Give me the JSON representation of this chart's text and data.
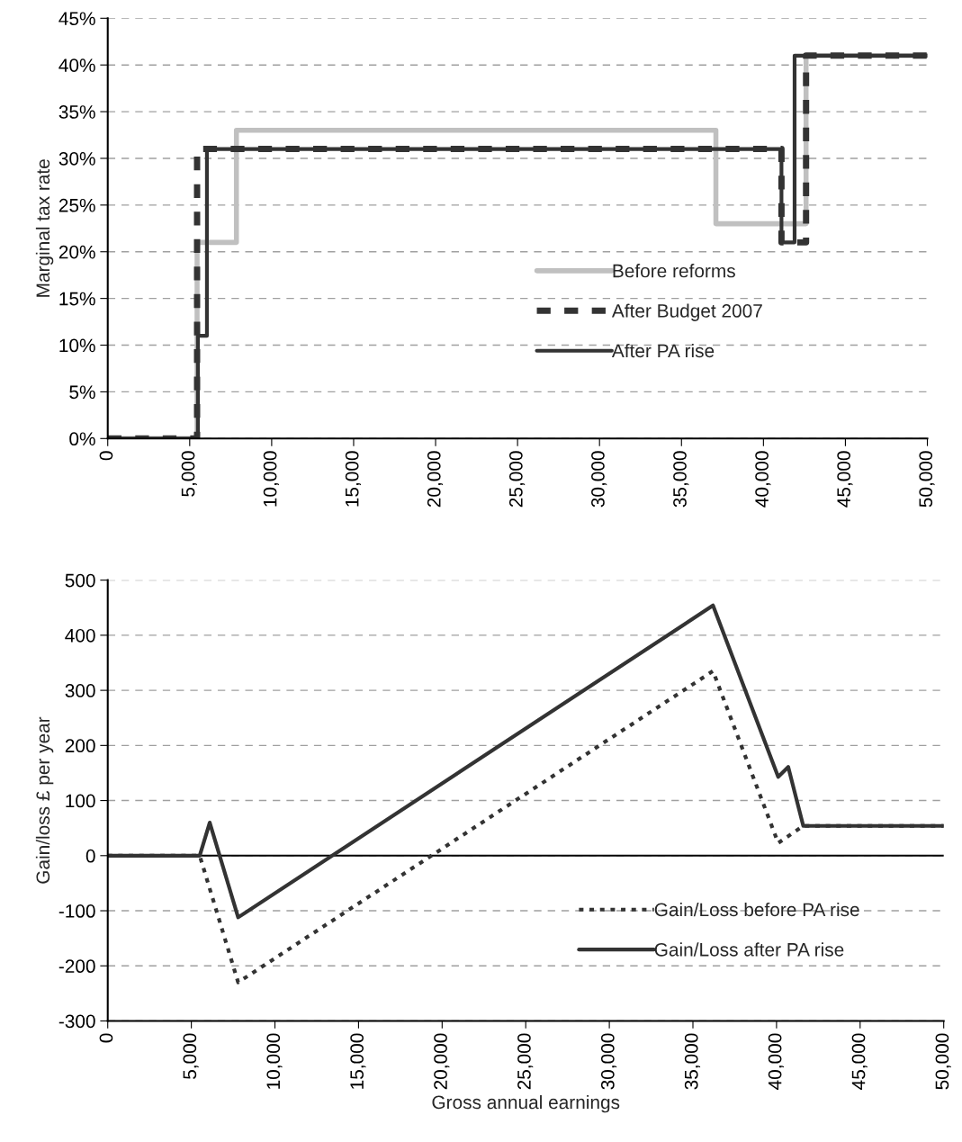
{
  "chart_data": [
    {
      "type": "step",
      "ylabel": "Marginal tax rate",
      "xlim": [
        0,
        50000
      ],
      "xticks": [
        {
          "value": 0,
          "label": "0"
        },
        {
          "value": 5000,
          "label": "5,000"
        },
        {
          "value": 10000,
          "label": "10,000"
        },
        {
          "value": 15000,
          "label": "15,000"
        },
        {
          "value": 20000,
          "label": "20,000"
        },
        {
          "value": 25000,
          "label": "25,000"
        },
        {
          "value": 30000,
          "label": "30,000"
        },
        {
          "value": 35000,
          "label": "35,000"
        },
        {
          "value": 40000,
          "label": "40,000"
        },
        {
          "value": 45000,
          "label": "45,000"
        },
        {
          "value": 50000,
          "label": "50,000"
        }
      ],
      "ylim": [
        0,
        45
      ],
      "yticks": [
        {
          "value": 0,
          "label": "0%"
        },
        {
          "value": 5,
          "label": "5%"
        },
        {
          "value": 10,
          "label": "10%"
        },
        {
          "value": 15,
          "label": "15%"
        },
        {
          "value": 20,
          "label": "20%"
        },
        {
          "value": 25,
          "label": "25%"
        },
        {
          "value": 30,
          "label": "30%"
        },
        {
          "value": 35,
          "label": "35%"
        },
        {
          "value": 40,
          "label": "40%"
        },
        {
          "value": 45,
          "label": "45%"
        }
      ],
      "grid": "y",
      "legend": "right",
      "series": [
        {
          "name": "Before reforms",
          "color": "#c0c0c0",
          "line_style": "solid",
          "x": [
            0,
            5450,
            7850,
            37100,
            42600,
            50000
          ],
          "values": [
            0,
            21,
            33,
            23,
            41,
            41
          ]
        },
        {
          "name": "After Budget 2007",
          "color": "#333333",
          "line_style": "dashed",
          "x": [
            0,
            5450,
            41100,
            42600,
            50000
          ],
          "values": [
            0,
            31,
            21,
            41,
            41
          ]
        },
        {
          "name": "After PA rise",
          "color": "#333333",
          "line_style": "solid",
          "x": [
            0,
            5500,
            6050,
            41100,
            41900,
            50000
          ],
          "values": [
            0,
            11,
            31,
            21,
            41,
            41
          ]
        }
      ]
    },
    {
      "type": "line",
      "xlabel": "Gross annual earnings",
      "ylabel": "Gain/loss £ per year",
      "xlim": [
        0,
        50000
      ],
      "xticks": [
        {
          "value": 0,
          "label": "0"
        },
        {
          "value": 5000,
          "label": "5,000"
        },
        {
          "value": 10000,
          "label": "10,000"
        },
        {
          "value": 15000,
          "label": "15,000"
        },
        {
          "value": 20000,
          "label": "20,000"
        },
        {
          "value": 25000,
          "label": "25,000"
        },
        {
          "value": 30000,
          "label": "30,000"
        },
        {
          "value": 35000,
          "label": "35,000"
        },
        {
          "value": 40000,
          "label": "40,000"
        },
        {
          "value": 45000,
          "label": "45,000"
        },
        {
          "value": 50000,
          "label": "50,000"
        }
      ],
      "ylim": [
        -300,
        500
      ],
      "yticks": [
        -300,
        -200,
        -100,
        0,
        100,
        200,
        300,
        400,
        500
      ],
      "grid": "y",
      "legend": "lower right",
      "ref_lines": [
        {
          "axis": "y",
          "value": 0,
          "color": "#000000",
          "line_style": "solid"
        }
      ],
      "series": [
        {
          "name": "Gain/Loss before PA rise",
          "color": "#333333",
          "line_style": "dotted",
          "x": [
            0,
            5500,
            7800,
            36200,
            40100,
            41600,
            50000
          ],
          "values": [
            0,
            0,
            -230,
            335,
            23,
            54,
            54
          ]
        },
        {
          "name": "Gain/Loss after PA rise",
          "color": "#333333",
          "line_style": "solid",
          "x": [
            0,
            5500,
            6100,
            7800,
            36200,
            40100,
            40700,
            41600,
            50000
          ],
          "values": [
            0,
            0,
            60,
            -112,
            454,
            143,
            161,
            54,
            54
          ]
        }
      ]
    }
  ]
}
